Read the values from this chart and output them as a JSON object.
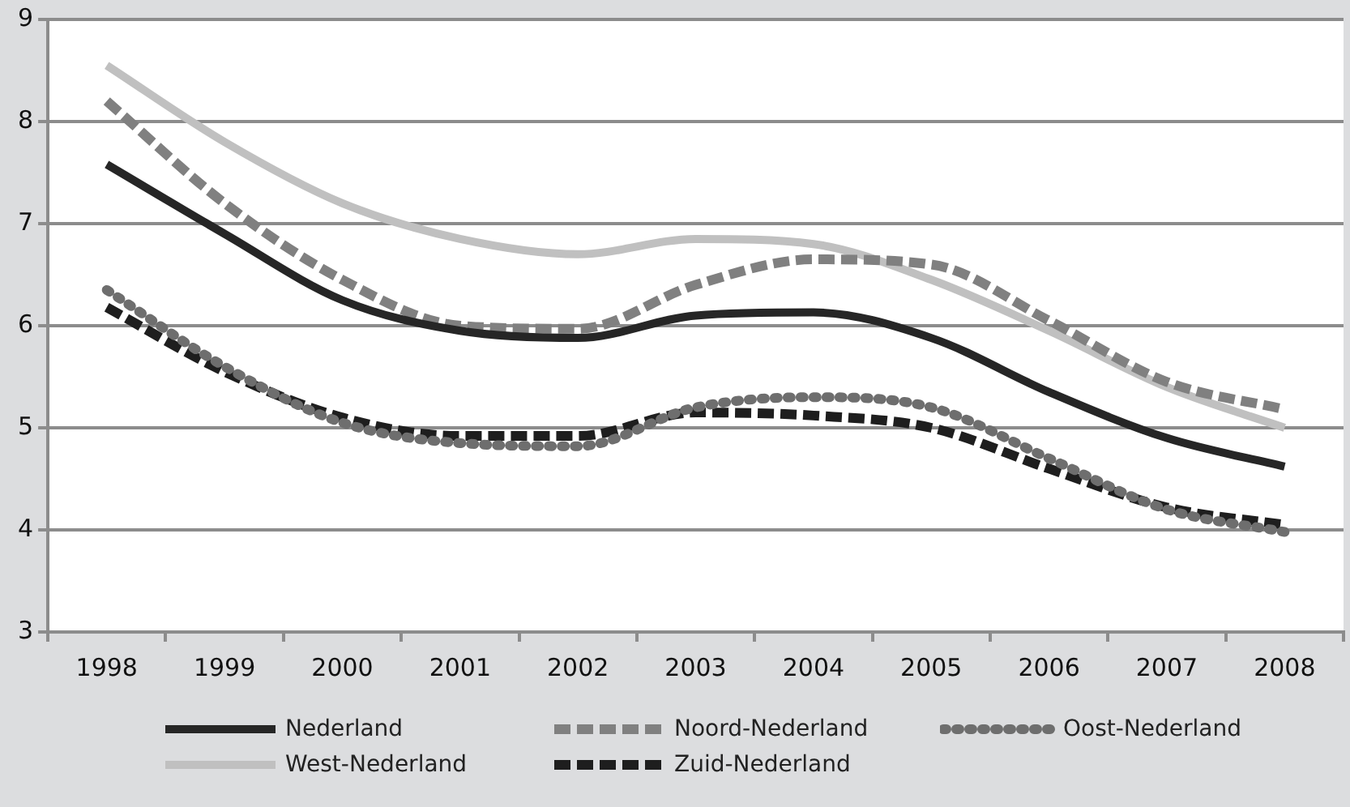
{
  "chart_data": {
    "type": "line",
    "categories": [
      "1998",
      "1999",
      "2000",
      "2001",
      "2002",
      "2003",
      "2004",
      "2005",
      "2006",
      "2007",
      "2008"
    ],
    "series": [
      {
        "name": "Nederland",
        "color": "#262626",
        "line_style": "solid",
        "values": [
          7.58,
          6.9,
          6.25,
          5.95,
          5.88,
          6.1,
          6.13,
          5.88,
          5.35,
          4.9,
          4.62
        ]
      },
      {
        "name": "Noord-Nederland",
        "color": "#808080",
        "line_style": "dashed",
        "values": [
          8.2,
          7.2,
          6.45,
          6.0,
          5.97,
          6.4,
          6.65,
          6.6,
          6.05,
          5.45,
          5.18
        ]
      },
      {
        "name": "Oost-Nederland",
        "color": "#6e6e6e",
        "line_style": "dotted",
        "values": [
          6.35,
          5.6,
          5.05,
          4.85,
          4.82,
          5.2,
          5.3,
          5.2,
          4.7,
          4.2,
          3.98
        ]
      },
      {
        "name": "West-Nederland",
        "color": "#c0c0c0",
        "line_style": "solid",
        "values": [
          8.55,
          7.8,
          7.2,
          6.85,
          6.7,
          6.85,
          6.8,
          6.45,
          5.95,
          5.4,
          5.0
        ]
      },
      {
        "name": "Zuid-Nederland",
        "color": "#1e1e1e",
        "line_style": "dashed",
        "values": [
          6.18,
          5.55,
          5.1,
          4.92,
          4.92,
          5.15,
          5.12,
          5.0,
          4.6,
          4.22,
          4.05
        ]
      }
    ],
    "ylim": [
      3,
      9
    ],
    "yticks": [
      3,
      4,
      5,
      6,
      7,
      8,
      9
    ],
    "grid": "y",
    "legend": "bottom",
    "marker": "none"
  }
}
